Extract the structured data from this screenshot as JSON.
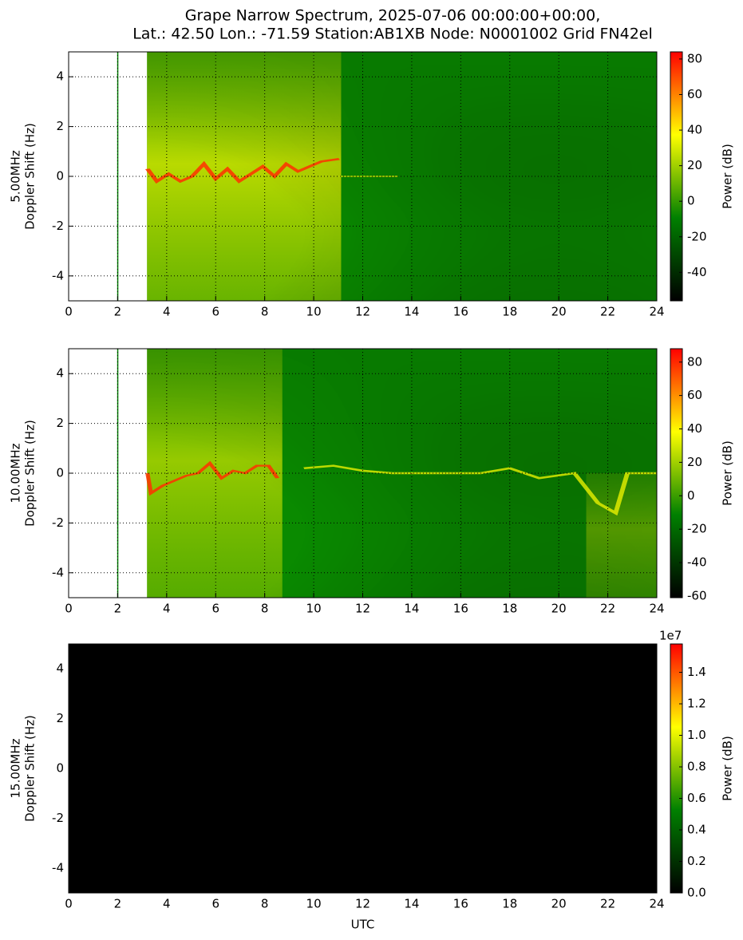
{
  "figure": {
    "title": [
      "Grape Narrow Spectrum, 2025-07-06 00:00:00+00:00,",
      "Lat.: 42.50 Lon.: -71.59 Station:AB1XB Node: N0001002 Grid FN42el"
    ]
  },
  "chart_data": [
    {
      "type": "heatmap",
      "ylabel": [
        "5.00MHz",
        "Doppler Shift (Hz)"
      ],
      "xlim": [
        0,
        24
      ],
      "xticks": [
        0,
        2,
        4,
        6,
        8,
        10,
        12,
        14,
        16,
        18,
        20,
        22,
        24
      ],
      "ylim": [
        -5,
        5
      ],
      "yticks": [
        -4,
        -2,
        0,
        2,
        4
      ],
      "grid": true,
      "colorbar": {
        "label": "Power (dB)",
        "lim": [
          -56,
          84
        ],
        "ticks": [
          -40,
          -20,
          0,
          20,
          40,
          60,
          80
        ],
        "colors": [
          "#000000",
          "#008000",
          "#ffff00",
          "#ff0000"
        ]
      }
    },
    {
      "type": "heatmap",
      "ylabel": [
        "10.00MHz",
        "Doppler Shift (Hz)"
      ],
      "xlim": [
        0,
        24
      ],
      "xticks": [
        0,
        2,
        4,
        6,
        8,
        10,
        12,
        14,
        16,
        18,
        20,
        22,
        24
      ],
      "ylim": [
        -5,
        5
      ],
      "yticks": [
        -4,
        -2,
        0,
        2,
        4
      ],
      "grid": true,
      "colorbar": {
        "label": "Power (dB)",
        "lim": [
          -61,
          88
        ],
        "ticks": [
          -60,
          -40,
          -20,
          0,
          20,
          40,
          60,
          80
        ],
        "colors": [
          "#000000",
          "#008000",
          "#ffff00",
          "#ff0000"
        ]
      }
    },
    {
      "type": "heatmap",
      "ylabel": [
        "15.00MHz",
        "Doppler Shift (Hz)"
      ],
      "xlabel": "UTC",
      "xlim": [
        0,
        24
      ],
      "xticks": [
        0,
        2,
        4,
        6,
        8,
        10,
        12,
        14,
        16,
        18,
        20,
        22,
        24
      ],
      "ylim": [
        -5,
        5
      ],
      "yticks": [
        -4,
        -2,
        0,
        2,
        4
      ],
      "grid": true,
      "colorbar": {
        "label": "Power (dB)",
        "lim": [
          0,
          15800000
        ],
        "offset_label": "1e7",
        "ticks": [
          {
            "value": 0,
            "label": "0.0"
          },
          {
            "value": 2000000,
            "label": "0.2"
          },
          {
            "value": 4000000,
            "label": "0.4"
          },
          {
            "value": 6000000,
            "label": "0.6"
          },
          {
            "value": 8000000,
            "label": "0.8"
          },
          {
            "value": 10000000,
            "label": "1.0"
          },
          {
            "value": 12000000,
            "label": "1.2"
          },
          {
            "value": 14000000,
            "label": "1.4"
          }
        ],
        "colors": [
          "#000000",
          "#008000",
          "#ffff00",
          "#ff0000"
        ]
      }
    }
  ]
}
